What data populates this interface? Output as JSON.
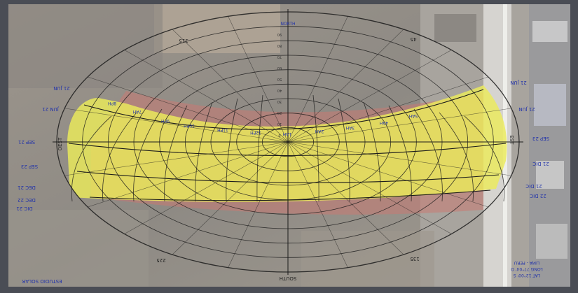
{
  "diagram": {
    "type": "sun-path-overlay-on-aerial-photo",
    "cardinal_labels": {
      "north": "NORTH",
      "south": "SOUTH",
      "east": "EST",
      "west": "OEST"
    },
    "azimuth_labels": [
      "315",
      "45",
      "135",
      "225"
    ],
    "altitude_labels": [
      "90",
      "80",
      "70",
      "60",
      "50",
      "40",
      "30",
      "20",
      "10",
      "0"
    ],
    "hour_labels": [
      "8PH",
      "7AH",
      "9PH",
      "10PH",
      "11PH",
      "12PH",
      "1AH",
      "2AH",
      "3AH",
      "4AH",
      "5AH"
    ],
    "left_side_labels": [
      "21 JUN",
      "JUN 21",
      "SEP 21",
      "SEP 23",
      "DEC 21",
      "DEC 22",
      "DIC 21"
    ],
    "right_side_labels": [
      "21 JUN",
      "21 JUN",
      "SEP 23",
      "21 DIC",
      "21 DIC",
      "22 DIC"
    ],
    "bottom_left_caption": "ESTUDIO SOLAR",
    "bottom_right_caption": [
      "LAT 12°00' S",
      "LONG 77°04' O",
      "LIMA - PERU"
    ],
    "colors": {
      "summer_zone": "#eceb5a",
      "winter_zone": "#c87a72",
      "grid_line": "#1b1b1b",
      "label_blue": "#2233aa"
    }
  }
}
